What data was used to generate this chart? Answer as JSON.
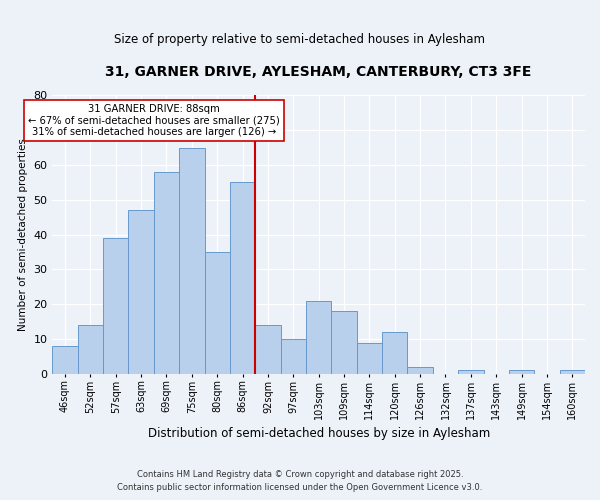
{
  "title": "31, GARNER DRIVE, AYLESHAM, CANTERBURY, CT3 3FE",
  "subtitle": "Size of property relative to semi-detached houses in Aylesham",
  "xlabel": "Distribution of semi-detached houses by size in Aylesham",
  "ylabel": "Number of semi-detached properties",
  "bin_labels": [
    "46sqm",
    "52sqm",
    "57sqm",
    "63sqm",
    "69sqm",
    "75sqm",
    "80sqm",
    "86sqm",
    "92sqm",
    "97sqm",
    "103sqm",
    "109sqm",
    "114sqm",
    "120sqm",
    "126sqm",
    "132sqm",
    "137sqm",
    "143sqm",
    "149sqm",
    "154sqm",
    "160sqm"
  ],
  "bar_values": [
    8,
    14,
    39,
    47,
    58,
    65,
    35,
    55,
    14,
    10,
    21,
    18,
    9,
    12,
    2,
    0,
    1,
    0,
    1,
    0,
    1
  ],
  "bar_color": "#b8d0eb",
  "bar_edge_color": "#6699cc",
  "vline_color": "#cc0000",
  "annotation_text": "31 GARNER DRIVE: 88sqm\n← 67% of semi-detached houses are smaller (275)\n31% of semi-detached houses are larger (126) →",
  "annotation_box_color": "#ffffff",
  "annotation_box_edge": "#cc0000",
  "ylim": [
    0,
    80
  ],
  "yticks": [
    0,
    10,
    20,
    30,
    40,
    50,
    60,
    70,
    80
  ],
  "footer_line1": "Contains HM Land Registry data © Crown copyright and database right 2025.",
  "footer_line2": "Contains public sector information licensed under the Open Government Licence v3.0.",
  "background_color": "#edf2f9",
  "grid_color": "#ffffff",
  "title_fontsize": 10,
  "subtitle_fontsize": 8.5,
  "ylabel_fontsize": 7.5,
  "xlabel_fontsize": 8.5
}
